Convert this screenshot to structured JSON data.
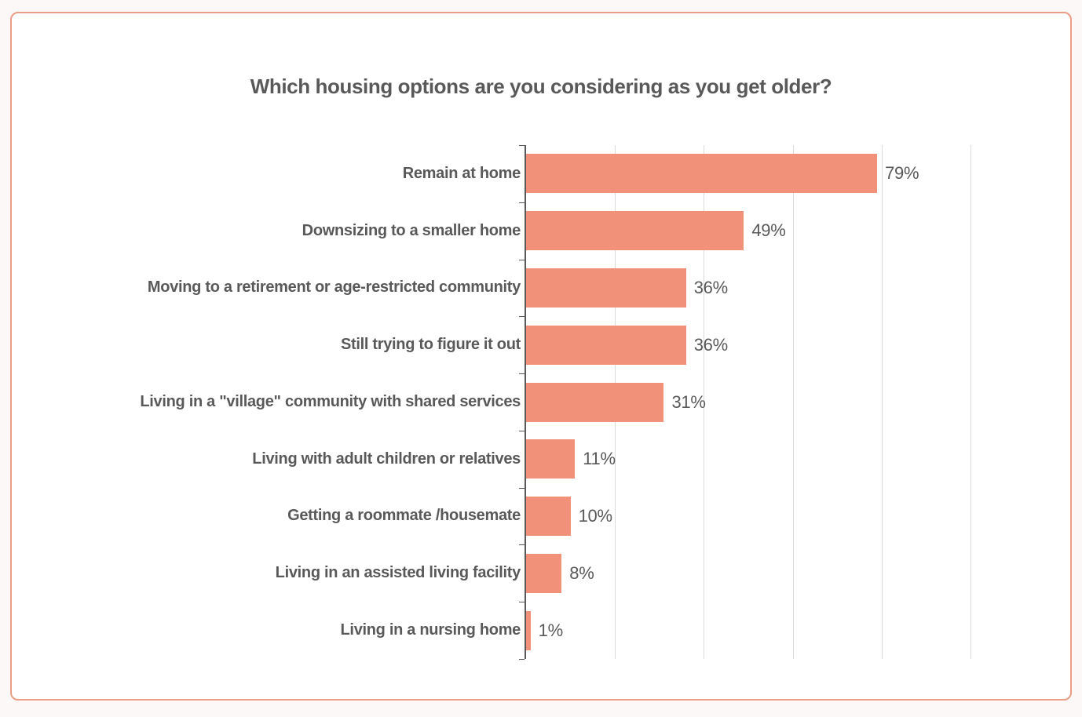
{
  "chart_data": {
    "type": "bar",
    "orientation": "horizontal",
    "title": "Which housing options are you considering as you get older?",
    "categories": [
      "Remain at home",
      "Downsizing to a smaller home",
      "Moving to a retirement or age-restricted community",
      "Still trying to figure it out",
      "Living in a \"village\" community with shared services",
      "Living with adult children or relatives",
      "Getting a roommate /housemate",
      "Living in an assisted living facility",
      "Living in a nursing home"
    ],
    "values": [
      79,
      49,
      36,
      36,
      31,
      11,
      10,
      8,
      1
    ],
    "value_labels": [
      "79%",
      "49%",
      "36%",
      "36%",
      "31%",
      "11%",
      "10%",
      "8%",
      "1%"
    ],
    "xlabel": "",
    "ylabel": "",
    "xlim": [
      0,
      100
    ],
    "gridline_interval": 20,
    "grid": "vertical-only",
    "legend": "none",
    "data_labels": "outside-end",
    "colors": {
      "bar": "#F2917A",
      "axis": "#595959",
      "gridline": "#DBDBDB",
      "category_label": "#595959",
      "value_label": "#595959",
      "title": "#595959",
      "card_border": "#EC9D86",
      "card_background": "#FFFFFF",
      "page_background": "#FCF8F8"
    }
  }
}
